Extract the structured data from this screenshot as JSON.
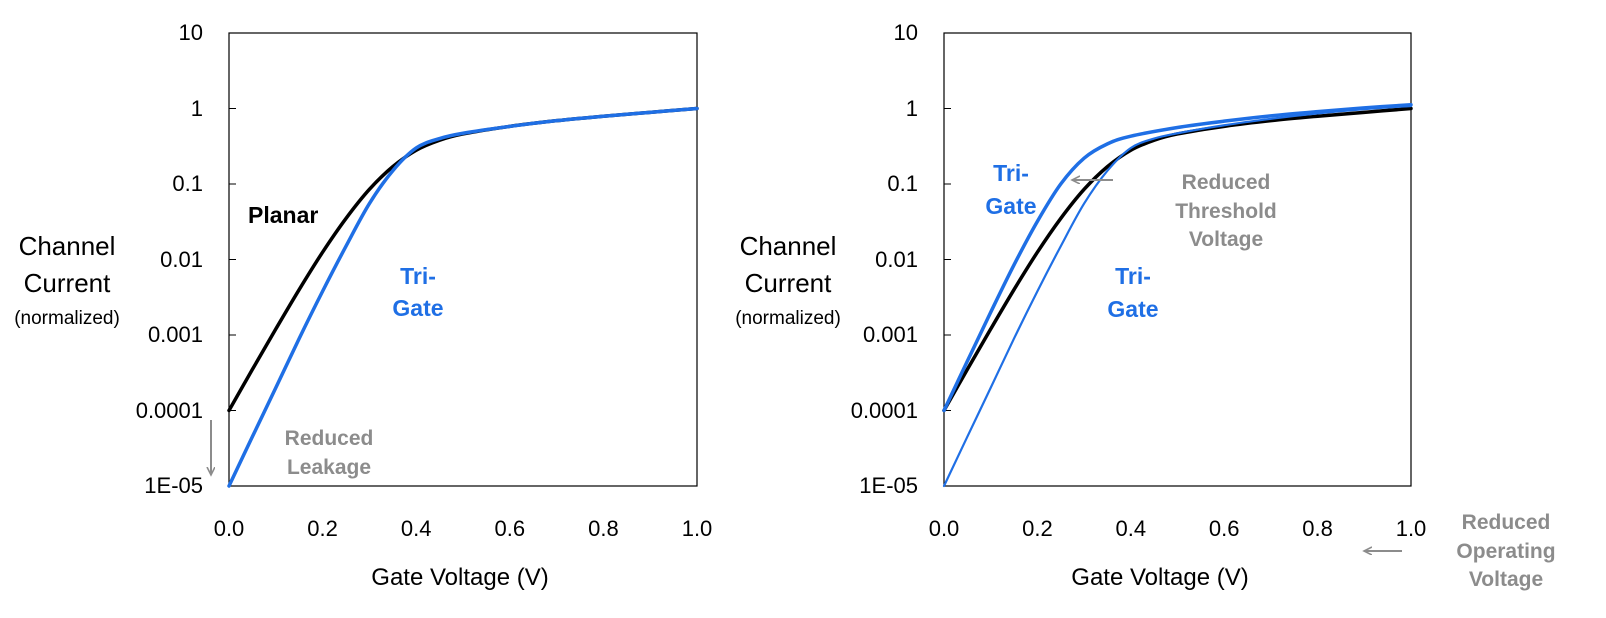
{
  "colors": {
    "planar": "#000000",
    "trigate": "#1f6fe5",
    "annotation": "#8c8c8c"
  },
  "y_axis_label": {
    "line1": "Channel",
    "line2": "Current",
    "line3": "(normalized)"
  },
  "chart_data": [
    {
      "type": "line",
      "title": "",
      "xlabel": "Gate Voltage (V)",
      "ylabel": "Channel Current (normalized)",
      "yscale": "log",
      "xlim": [
        0.0,
        1.0
      ],
      "ylim": [
        1e-05,
        10
      ],
      "x_ticks": [
        "0.0",
        "0.2",
        "0.4",
        "0.6",
        "0.8",
        "1.0"
      ],
      "y_ticks": [
        "10",
        "1",
        "0.1",
        "0.01",
        "0.001",
        "0.0001",
        "1E-05"
      ],
      "series": [
        {
          "name": "Planar",
          "color": "#000000",
          "width": 3.5,
          "x": [
            0.0,
            0.05,
            0.1,
            0.15,
            0.2,
            0.25,
            0.3,
            0.35,
            0.4,
            0.45,
            0.5,
            0.6,
            0.7,
            0.8,
            0.9,
            1.0
          ],
          "y": [
            0.0001,
            0.00035,
            0.0012,
            0.004,
            0.0125,
            0.035,
            0.085,
            0.17,
            0.28,
            0.38,
            0.46,
            0.58,
            0.69,
            0.79,
            0.89,
            1.0
          ]
        },
        {
          "name": "Tri-Gate",
          "color": "#1f6fe5",
          "width": 3.5,
          "x": [
            0.0,
            0.05,
            0.1,
            0.15,
            0.2,
            0.25,
            0.3,
            0.35,
            0.4,
            0.45,
            0.5,
            0.6,
            0.7,
            0.8,
            0.9,
            1.0
          ],
          "y": [
            1e-05,
            4.5e-05,
            0.0002,
            0.0009,
            0.0038,
            0.015,
            0.055,
            0.15,
            0.3,
            0.4,
            0.47,
            0.58,
            0.69,
            0.79,
            0.89,
            1.0
          ]
        }
      ],
      "annotations": {
        "planar_label": "Planar",
        "trigate_line1": "Tri-",
        "trigate_line2": "Gate",
        "reduced_line1": "Reduced",
        "reduced_line2": "Leakage"
      }
    },
    {
      "type": "line",
      "title": "",
      "xlabel": "Gate Voltage (V)",
      "ylabel": "Channel Current (normalized)",
      "yscale": "log",
      "xlim": [
        0.0,
        1.0
      ],
      "ylim": [
        1e-05,
        10
      ],
      "x_ticks": [
        "0.0",
        "0.2",
        "0.4",
        "0.6",
        "0.8",
        "1.0"
      ],
      "y_ticks": [
        "10",
        "1",
        "0.1",
        "0.01",
        "0.001",
        "0.0001",
        "1E-05"
      ],
      "series": [
        {
          "name": "Planar",
          "color": "#000000",
          "width": 3.5,
          "x": [
            0.0,
            0.05,
            0.1,
            0.15,
            0.2,
            0.25,
            0.3,
            0.35,
            0.4,
            0.45,
            0.5,
            0.6,
            0.7,
            0.8,
            0.9,
            1.0
          ],
          "y": [
            0.0001,
            0.00035,
            0.0012,
            0.004,
            0.0125,
            0.035,
            0.085,
            0.17,
            0.28,
            0.38,
            0.46,
            0.58,
            0.69,
            0.79,
            0.89,
            1.0
          ]
        },
        {
          "name": "Tri-Gate (reduced threshold)",
          "color": "#1f6fe5",
          "width": 3.5,
          "x": [
            0.0,
            0.05,
            0.1,
            0.15,
            0.2,
            0.25,
            0.3,
            0.35,
            0.4,
            0.5,
            0.6,
            0.7,
            0.8,
            0.9,
            1.0
          ],
          "y": [
            0.0001,
            0.00045,
            0.002,
            0.0085,
            0.032,
            0.1,
            0.22,
            0.34,
            0.43,
            0.56,
            0.68,
            0.8,
            0.91,
            1.02,
            1.12
          ]
        },
        {
          "name": "Tri-Gate",
          "color": "#1f6fe5",
          "width": 2.2,
          "x": [
            0.0,
            0.05,
            0.1,
            0.15,
            0.2,
            0.25,
            0.3,
            0.35,
            0.4,
            0.45,
            0.5,
            0.6,
            0.7,
            0.8,
            0.9,
            1.0
          ],
          "y": [
            1e-05,
            4.5e-05,
            0.0002,
            0.0009,
            0.0038,
            0.015,
            0.055,
            0.15,
            0.3,
            0.4,
            0.47,
            0.6,
            0.73,
            0.86,
            0.98,
            1.08
          ]
        }
      ],
      "annotations": {
        "trigate_upper_line1": "Tri-",
        "trigate_upper_line2": "Gate",
        "trigate_lower_line1": "Tri-",
        "trigate_lower_line2": "Gate",
        "threshold_line1": "Reduced",
        "threshold_line2": "Threshold",
        "threshold_line3": "Voltage",
        "operating_line1": "Reduced",
        "operating_line2": "Operating",
        "operating_line3": "Voltage"
      }
    }
  ]
}
